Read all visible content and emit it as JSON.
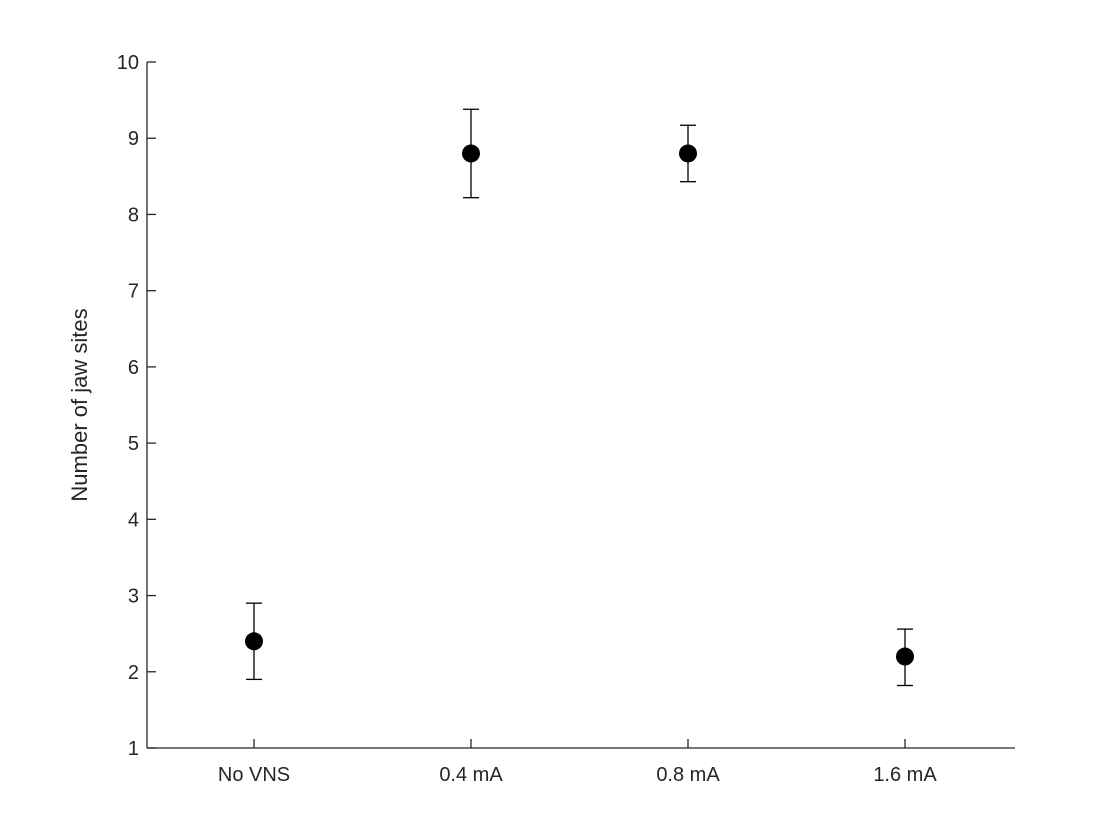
{
  "chart_data": {
    "type": "scatter",
    "title": "",
    "xlabel": "",
    "ylabel": "Number of jaw sites",
    "categories": [
      "No VNS",
      "0.4 mA",
      "0.8 mA",
      "1.6 mA"
    ],
    "ylim": [
      1,
      10
    ],
    "yticks": [
      1,
      2,
      3,
      4,
      5,
      6,
      7,
      8,
      9,
      10
    ],
    "grid": false,
    "legend": "none",
    "marker_color": "#000000",
    "series": [
      {
        "values": [
          2.4,
          8.8,
          8.8,
          2.2
        ],
        "error_low": [
          1.9,
          8.22,
          8.43,
          1.82
        ],
        "error_high": [
          2.9,
          9.38,
          9.17,
          2.56
        ]
      }
    ]
  }
}
